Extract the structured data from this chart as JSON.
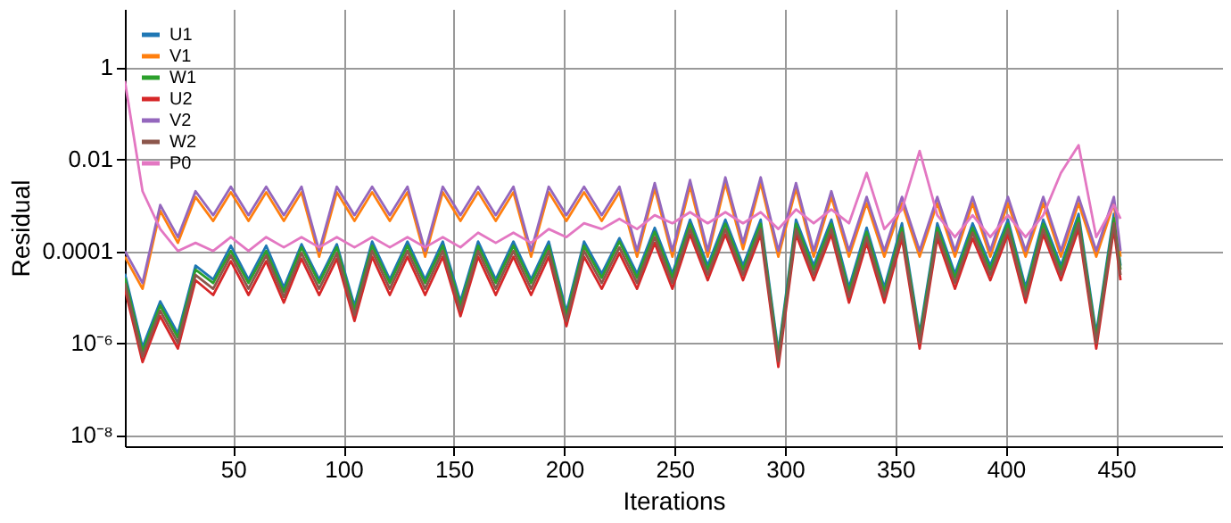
{
  "chart_data": {
    "type": "line",
    "xlabel": "Iterations",
    "ylabel": "Residual",
    "log": "y",
    "grid": true,
    "legend": "top left",
    "line_style": "solid",
    "marker": "none",
    "xlim": [
      1,
      498
    ],
    "xticks": [
      50,
      100,
      150,
      200,
      250,
      300,
      350,
      400,
      450
    ],
    "ylim": [
      5.6e-09,
      18.6
    ],
    "yticks": [
      {
        "value": 1e-08,
        "label": "10⁻⁸"
      },
      {
        "value": 1e-06,
        "label": "10⁻⁶"
      },
      0.0001,
      0.01,
      1
    ],
    "x": [
      1,
      9,
      17,
      25,
      33,
      41,
      49,
      57,
      65,
      73,
      81,
      89,
      97,
      105,
      113,
      121,
      129,
      137,
      145,
      153,
      161,
      169,
      177,
      185,
      193,
      201,
      209,
      217,
      225,
      233,
      241,
      249,
      257,
      265,
      273,
      281,
      289,
      297,
      305,
      313,
      321,
      329,
      337,
      345,
      353,
      361,
      369,
      377,
      385,
      393,
      401,
      409,
      417,
      425,
      433,
      441,
      449,
      452
    ],
    "series": [
      {
        "name": "U1",
        "color": "#1f77b4",
        "values": [
          3.2e-05,
          8e-07,
          8e-06,
          1.6e-06,
          4.8e-05,
          2.4e-05,
          0.00013,
          2.4e-05,
          0.00013,
          1.6e-05,
          0.00014,
          2.4e-05,
          0.00014,
          6.4e-06,
          0.00016,
          2.4e-05,
          0.00016,
          2.4e-05,
          0.00016,
          8e-06,
          0.00016,
          2.4e-05,
          0.00016,
          2.4e-05,
          0.00016,
          4.8e-06,
          0.00016,
          3.2e-05,
          0.00019,
          3.2e-05,
          0.00032,
          3.2e-05,
          0.00048,
          4.8e-05,
          0.00048,
          4.8e-05,
          0.00048,
          6.4e-07,
          0.00048,
          4.8e-05,
          0.00048,
          1.6e-05,
          0.00032,
          1.6e-05,
          0.0004,
          1.6e-06,
          0.0004,
          3.2e-05,
          0.0004,
          4.8e-05,
          0.00048,
          1.6e-05,
          0.00048,
          4.8e-05,
          0.00064,
          1.6e-06,
          0.00064,
          4.8e-05
        ]
      },
      {
        "name": "V1",
        "color": "#ff7f0e",
        "values": [
          7.5e-05,
          1.5e-05,
          0.00075,
          0.00015,
          0.0015,
          0.00045,
          0.0019,
          0.00045,
          0.0019,
          0.00045,
          0.0019,
          7.5e-05,
          0.0019,
          0.00045,
          0.0019,
          0.00045,
          0.0019,
          7.5e-05,
          0.0019,
          0.00045,
          0.0019,
          0.00045,
          0.0019,
          7.5e-05,
          0.0019,
          0.00045,
          0.0019,
          0.00045,
          0.0019,
          7.5e-05,
          0.0023,
          7.5e-05,
          0.0026,
          7.5e-05,
          0.003,
          0.00011,
          0.003,
          7.5e-05,
          0.0023,
          7.5e-05,
          0.0015,
          7.5e-05,
          0.0011,
          7.5e-05,
          0.0011,
          7.5e-05,
          0.0011,
          7.5e-05,
          0.0011,
          7.5e-05,
          0.0011,
          7.5e-05,
          0.0011,
          7.5e-05,
          0.0011,
          7.5e-05,
          0.0011,
          7.5e-05
        ]
      },
      {
        "name": "W1",
        "color": "#2ca02c",
        "values": [
          2.6e-05,
          6.5e-07,
          6.5e-06,
          1.3e-06,
          3.9e-05,
          2e-05,
          0.0001,
          2e-05,
          0.0001,
          1.3e-05,
          0.00012,
          2e-05,
          0.00012,
          5.2e-06,
          0.00013,
          2e-05,
          0.00013,
          2e-05,
          0.00013,
          6.5e-06,
          0.00013,
          2e-05,
          0.00013,
          2e-05,
          0.00013,
          3.9e-06,
          0.00013,
          2.6e-05,
          0.00016,
          2.6e-05,
          0.00026,
          2.6e-05,
          0.00039,
          3.9e-05,
          0.00039,
          3.9e-05,
          0.00039,
          5.2e-07,
          0.00039,
          3.9e-05,
          0.00039,
          1.3e-05,
          0.00026,
          1.3e-05,
          0.00032,
          1.3e-06,
          0.00032,
          2.6e-05,
          0.00032,
          3.9e-05,
          0.00039,
          1.3e-05,
          0.00039,
          3.9e-05,
          0.00052,
          1.3e-06,
          0.00052,
          3.9e-05
        ]
      },
      {
        "name": "U2",
        "color": "#d62728",
        "values": [
          1.5e-05,
          3.8e-07,
          3.8e-06,
          7.5e-07,
          2.3e-05,
          1.1e-05,
          6e-05,
          1.1e-05,
          6e-05,
          7.5e-06,
          6.8e-05,
          1.1e-05,
          6.8e-05,
          3e-06,
          7.5e-05,
          1.1e-05,
          7.5e-05,
          1.1e-05,
          7.5e-05,
          3.8e-06,
          7.5e-05,
          1.1e-05,
          7.5e-05,
          1.1e-05,
          7.5e-05,
          2.3e-06,
          7.5e-05,
          1.5e-05,
          9e-05,
          1.5e-05,
          0.00015,
          1.5e-05,
          0.00023,
          2.3e-05,
          0.00023,
          2.3e-05,
          0.00023,
          3e-07,
          0.00023,
          2.3e-05,
          0.00023,
          7.5e-06,
          0.00015,
          7.5e-06,
          0.00019,
          7.5e-07,
          0.00019,
          1.5e-05,
          0.00019,
          2.3e-05,
          0.00023,
          7.5e-06,
          0.00023,
          2.3e-05,
          0.0003,
          7.5e-07,
          0.0003,
          2.3e-05
        ]
      },
      {
        "name": "V2",
        "color": "#9467bd",
        "values": [
          0.0001,
          2e-05,
          0.001,
          0.0002,
          0.002,
          0.0006,
          0.0025,
          0.0006,
          0.0025,
          0.0006,
          0.0025,
          0.0001,
          0.0025,
          0.0006,
          0.0025,
          0.0006,
          0.0025,
          0.0001,
          0.0025,
          0.0006,
          0.0025,
          0.0006,
          0.0025,
          0.0001,
          0.0025,
          0.0006,
          0.0025,
          0.0006,
          0.0025,
          0.0001,
          0.003,
          0.0001,
          0.0035,
          0.0001,
          0.004,
          0.00015,
          0.004,
          0.0001,
          0.003,
          0.0001,
          0.002,
          0.0001,
          0.0015,
          0.0001,
          0.0015,
          0.0001,
          0.0015,
          0.0001,
          0.0015,
          0.0001,
          0.0015,
          0.0001,
          0.0015,
          0.0001,
          0.0015,
          0.0001,
          0.0015,
          0.0001
        ]
      },
      {
        "name": "W2",
        "color": "#8c564b",
        "values": [
          2e-05,
          5e-07,
          5e-06,
          1e-06,
          3e-05,
          1.5e-05,
          8e-05,
          1.5e-05,
          8e-05,
          1e-05,
          9e-05,
          1.5e-05,
          9e-05,
          4e-06,
          0.0001,
          1.5e-05,
          0.0001,
          1.5e-05,
          0.0001,
          5e-06,
          0.0001,
          1.5e-05,
          0.0001,
          1.5e-05,
          0.0001,
          3e-06,
          0.0001,
          2e-05,
          0.00012,
          2e-05,
          0.0002,
          2e-05,
          0.0003,
          3e-05,
          0.0003,
          3e-05,
          0.0003,
          4e-07,
          0.0003,
          3e-05,
          0.0003,
          1e-05,
          0.0002,
          1e-05,
          0.00025,
          1e-06,
          0.00025,
          2e-05,
          0.00025,
          3e-05,
          0.0003,
          1e-05,
          0.0003,
          3e-05,
          0.0004,
          1e-06,
          0.0004,
          3e-05
        ]
      },
      {
        "name": "P0",
        "color": "#e377c2",
        "values": [
          0.5,
          0.002,
          0.0003,
          0.0001,
          0.00015,
          0.0001,
          0.0002,
          0.0001,
          0.0002,
          0.00012,
          0.0002,
          0.00012,
          0.0002,
          0.00012,
          0.0002,
          0.00012,
          0.0002,
          0.00012,
          0.0002,
          0.00012,
          0.00025,
          0.00015,
          0.00025,
          0.00015,
          0.0003,
          0.0002,
          0.0004,
          0.0003,
          0.0005,
          0.0003,
          0.0006,
          0.0004,
          0.0007,
          0.0004,
          0.0007,
          0.0004,
          0.0007,
          0.0003,
          0.0008,
          0.0004,
          0.0008,
          0.0004,
          0.005,
          0.0003,
          0.0008,
          0.015,
          0.0006,
          0.0002,
          0.0006,
          0.0002,
          0.0006,
          0.0002,
          0.0006,
          0.005,
          0.02,
          0.0002,
          0.001,
          0.0005
        ]
      }
    ]
  }
}
